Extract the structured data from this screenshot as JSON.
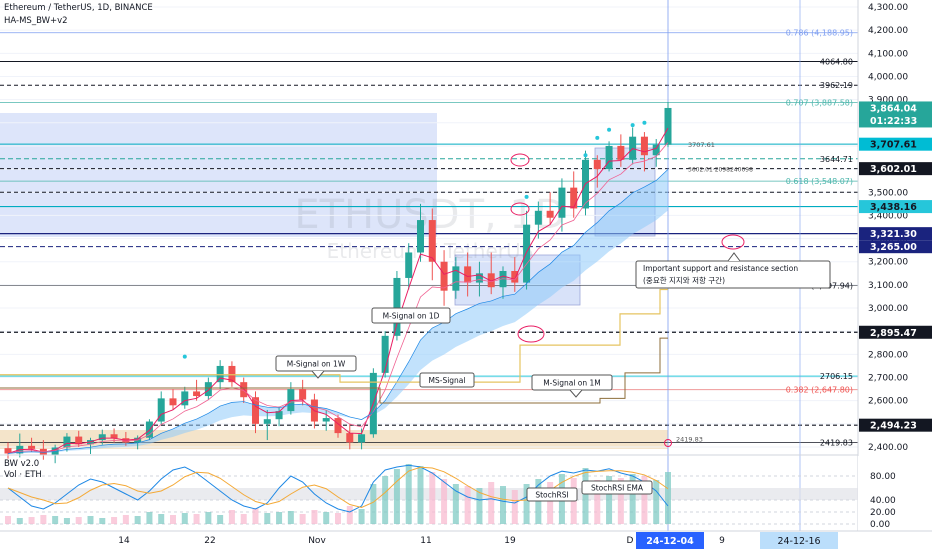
{
  "header": {
    "symbol": "Ethereum / TetherUS, 1D, BINANCE",
    "indicator": "HA-MS_BW+v2",
    "watermark_symbol": "ETHUSDT, 1D",
    "watermark_name": "Ethereum / TetherUS"
  },
  "lower_panel": {
    "title": "BW v2.0",
    "subtitle": "Vol · ETH",
    "yticks": [
      "80.00",
      "40.00",
      "20.00",
      "0.00"
    ],
    "labels": {
      "stochrsi": "StochRSI",
      "stochrsi_ema": "StochRSI EMA"
    }
  },
  "chart_data": {
    "type": "candlestick",
    "price_axis_ticks": [
      "4,300.00",
      "4,200.00",
      "4,100.00",
      "4,000.00",
      "3,900.00",
      "3,800.00",
      "3,700.00",
      "3,600.00",
      "3,500.00",
      "3,400.00",
      "3,300.00",
      "3,200.00",
      "3,100.00",
      "3,000.00",
      "2,900.00",
      "2,800.00",
      "2,700.00",
      "2,600.00",
      "2,500.00",
      "2,400.00"
    ],
    "price_labels": {
      "last_price": "3,864.04",
      "countdown": "01:22:33",
      "level_3707": "3,707.61",
      "level_3602": "3,602.01",
      "level_3438": "3,438.16",
      "level_3321": "3,321.30",
      "level_3265": "3,265.00",
      "level_2895": "2,895.47",
      "level_2494": "2,494.23"
    },
    "line_labels": {
      "l4064": "4064.80",
      "l3962": "3962.19",
      "l3644": "3644.71",
      "l2706": "2706.15",
      "l2419": "2419.83",
      "small_3707": "3707.61",
      "small_3602": "3602.01",
      "small_3602_extra": "2098240098",
      "small_2419": "2419.83"
    },
    "fib_levels": [
      {
        "label": "0.786 (4,188.95)"
      },
      {
        "label": "0.707 (3,887.58)"
      },
      {
        "label": "0.618 (3,548.07)"
      },
      {
        "label": "0.5 (3,097.94)"
      },
      {
        "label": "0.382 (2,647.80)"
      }
    ],
    "x_ticks": [
      "14",
      "22",
      "Nov",
      "11",
      "19",
      "D"
    ],
    "x_highlights": [
      "24-12-04",
      "9",
      "24-12-16"
    ],
    "annotations": {
      "m1w": "M-Signal on 1W",
      "m1d": "M-Signal on 1D",
      "ms": "MS-Signal",
      "m1m": "M-Signal on 1M",
      "support_en": "Important support and resistance section",
      "support_ko": "(중요한 지지와 저항 구간)"
    },
    "candles": [
      [
        2395,
        2420,
        2350,
        2372
      ],
      [
        2372,
        2458,
        2355,
        2405
      ],
      [
        2405,
        2440,
        2380,
        2392
      ],
      [
        2392,
        2430,
        2345,
        2365
      ],
      [
        2365,
        2410,
        2330,
        2398
      ],
      [
        2398,
        2460,
        2380,
        2445
      ],
      [
        2445,
        2470,
        2400,
        2412
      ],
      [
        2412,
        2440,
        2370,
        2430
      ],
      [
        2430,
        2475,
        2410,
        2455
      ],
      [
        2455,
        2480,
        2420,
        2438
      ],
      [
        2438,
        2465,
        2405,
        2420
      ],
      [
        2420,
        2450,
        2390,
        2440
      ],
      [
        2440,
        2520,
        2430,
        2510
      ],
      [
        2510,
        2640,
        2495,
        2610
      ],
      [
        2610,
        2650,
        2560,
        2580
      ],
      [
        2580,
        2660,
        2565,
        2640
      ],
      [
        2640,
        2690,
        2600,
        2620
      ],
      [
        2620,
        2700,
        2605,
        2680
      ],
      [
        2680,
        2775,
        2650,
        2750
      ],
      [
        2750,
        2770,
        2660,
        2680
      ],
      [
        2680,
        2700,
        2590,
        2615
      ],
      [
        2615,
        2640,
        2460,
        2500
      ],
      [
        2500,
        2560,
        2430,
        2520
      ],
      [
        2520,
        2575,
        2490,
        2555
      ],
      [
        2555,
        2680,
        2540,
        2650
      ],
      [
        2650,
        2690,
        2580,
        2605
      ],
      [
        2605,
        2630,
        2480,
        2510
      ],
      [
        2510,
        2560,
        2470,
        2525
      ],
      [
        2525,
        2540,
        2440,
        2460
      ],
      [
        2460,
        2500,
        2390,
        2420
      ],
      [
        2420,
        2480,
        2390,
        2455
      ],
      [
        2455,
        2740,
        2440,
        2720
      ],
      [
        2720,
        2900,
        2700,
        2880
      ],
      [
        2880,
        3160,
        2860,
        3130
      ],
      [
        3130,
        3280,
        3080,
        3240
      ],
      [
        3240,
        3450,
        3200,
        3380
      ],
      [
        3380,
        3430,
        3120,
        3200
      ],
      [
        3200,
        3250,
        3010,
        3075
      ],
      [
        3075,
        3220,
        3040,
        3180
      ],
      [
        3180,
        3240,
        3050,
        3110
      ],
      [
        3110,
        3200,
        3050,
        3150
      ],
      [
        3150,
        3240,
        3060,
        3090
      ],
      [
        3090,
        3180,
        3040,
        3160
      ],
      [
        3160,
        3220,
        3070,
        3110
      ],
      [
        3110,
        3420,
        3080,
        3360
      ],
      [
        3360,
        3460,
        3300,
        3420
      ],
      [
        3420,
        3500,
        3360,
        3390
      ],
      [
        3390,
        3560,
        3330,
        3520
      ],
      [
        3520,
        3590,
        3390,
        3430
      ],
      [
        3430,
        3680,
        3400,
        3640
      ],
      [
        3640,
        3660,
        3520,
        3600
      ],
      [
        3600,
        3720,
        3590,
        3700
      ],
      [
        3700,
        3750,
        3610,
        3640
      ],
      [
        3640,
        3780,
        3620,
        3740
      ],
      [
        3740,
        3760,
        3590,
        3660
      ],
      [
        3660,
        3730,
        3610,
        3705
      ],
      [
        3705,
        3890,
        3695,
        3864
      ]
    ]
  }
}
